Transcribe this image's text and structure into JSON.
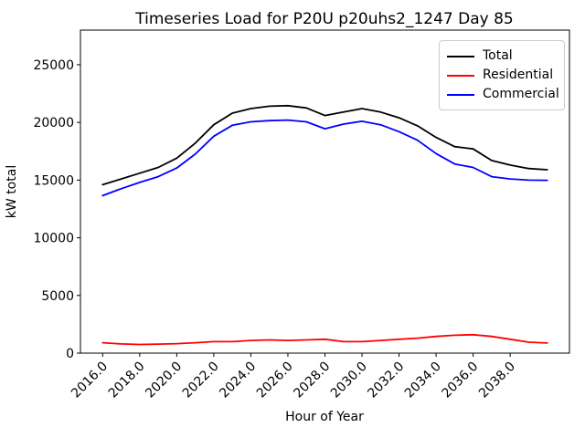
{
  "title": "Timeseries Load for P20U p20uhs2_1247  Day 85",
  "chart_data": {
    "type": "line",
    "title": "Timeseries Load for P20U p20uhs2_1247  Day 85",
    "xlabel": "Hour of Year",
    "ylabel": "kW total",
    "xlim": [
      2014.8,
      2041.2
    ],
    "ylim": [
      0,
      28000
    ],
    "grid": false,
    "legend_position": "upper right",
    "xtick_rotation": 45,
    "xticks": [
      2016,
      2018,
      2020,
      2022,
      2024,
      2026,
      2028,
      2030,
      2032,
      2034,
      2036,
      2038
    ],
    "xtick_labels": [
      "2016.0",
      "2018.0",
      "2020.0",
      "2022.0",
      "2024.0",
      "2026.0",
      "2028.0",
      "2030.0",
      "2032.0",
      "2034.0",
      "2036.0",
      "2038.0"
    ],
    "yticks": [
      0,
      5000,
      10000,
      15000,
      20000,
      25000
    ],
    "ytick_labels": [
      "0",
      "5000",
      "10000",
      "15000",
      "20000",
      "25000"
    ],
    "x": [
      2016,
      2017,
      2018,
      2019,
      2020,
      2021,
      2022,
      2023,
      2024,
      2025,
      2026,
      2027,
      2028,
      2029,
      2030,
      2031,
      2032,
      2033,
      2034,
      2035,
      2036,
      2037,
      2038,
      2039,
      2040
    ],
    "series": [
      {
        "name": "Total",
        "color": "#000000",
        "values": [
          14600,
          15100,
          15600,
          16100,
          16900,
          18200,
          19800,
          20800,
          21200,
          21400,
          21450,
          21250,
          20600,
          20900,
          21200,
          20900,
          20400,
          19700,
          18700,
          17900,
          17700,
          16700,
          16300,
          16000,
          15900
        ]
      },
      {
        "name": "Residential",
        "color": "#ff0000",
        "values": [
          900,
          800,
          750,
          780,
          820,
          900,
          1000,
          1000,
          1100,
          1150,
          1100,
          1150,
          1200,
          1000,
          1000,
          1100,
          1200,
          1300,
          1450,
          1550,
          1600,
          1450,
          1200,
          950,
          880
        ]
      },
      {
        "name": "Commercial",
        "color": "#0000ff",
        "values": [
          13650,
          14250,
          14800,
          15300,
          16050,
          17250,
          18800,
          19750,
          20050,
          20150,
          20200,
          20050,
          19450,
          19850,
          20100,
          19800,
          19200,
          18450,
          17300,
          16400,
          16100,
          15300,
          15100,
          15000,
          14980
        ]
      }
    ]
  }
}
